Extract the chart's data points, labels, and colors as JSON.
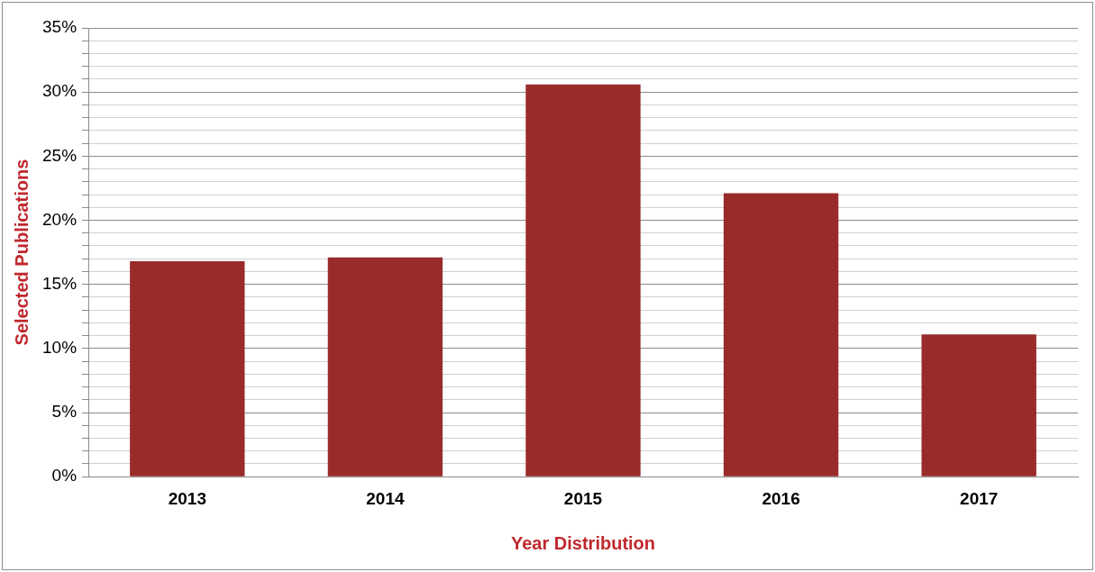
{
  "chart_data": {
    "type": "bar",
    "xlabel": "Year Distribution",
    "ylabel": "Selected Publications",
    "categories": [
      "2013",
      "2014",
      "2015",
      "2016",
      "2017"
    ],
    "values": [
      16.8,
      17.1,
      30.6,
      22.1,
      11.1
    ],
    "color": "#992b2b",
    "ylim": [
      0,
      35
    ],
    "yticks": [
      {
        "value": 0,
        "label": "0%"
      },
      {
        "value": 1,
        "label": null
      },
      {
        "value": 2,
        "label": null
      },
      {
        "value": 3,
        "label": null
      },
      {
        "value": 4,
        "label": null
      },
      {
        "value": 5,
        "label": "5%"
      },
      {
        "value": 6,
        "label": null
      },
      {
        "value": 7,
        "label": null
      },
      {
        "value": 8,
        "label": null
      },
      {
        "value": 9,
        "label": null
      },
      {
        "value": 10,
        "label": "10%"
      },
      {
        "value": 11,
        "label": null
      },
      {
        "value": 12,
        "label": null
      },
      {
        "value": 13,
        "label": null
      },
      {
        "value": 14,
        "label": null
      },
      {
        "value": 15,
        "label": "15%"
      },
      {
        "value": 16,
        "label": null
      },
      {
        "value": 17,
        "label": null
      },
      {
        "value": 18,
        "label": null
      },
      {
        "value": 19,
        "label": null
      },
      {
        "value": 20,
        "label": "20%"
      },
      {
        "value": 21,
        "label": null
      },
      {
        "value": 22,
        "label": null
      },
      {
        "value": 23,
        "label": null
      },
      {
        "value": 24,
        "label": null
      },
      {
        "value": 25,
        "label": "25%"
      },
      {
        "value": 26,
        "label": null
      },
      {
        "value": 27,
        "label": null
      },
      {
        "value": 28,
        "label": null
      },
      {
        "value": 29,
        "label": null
      },
      {
        "value": 30,
        "label": "30%"
      },
      {
        "value": 31,
        "label": null
      },
      {
        "value": 32,
        "label": null
      },
      {
        "value": 33,
        "label": null
      },
      {
        "value": 34,
        "label": null
      },
      {
        "value": 35,
        "label": "35%"
      }
    ],
    "grid": "y"
  }
}
